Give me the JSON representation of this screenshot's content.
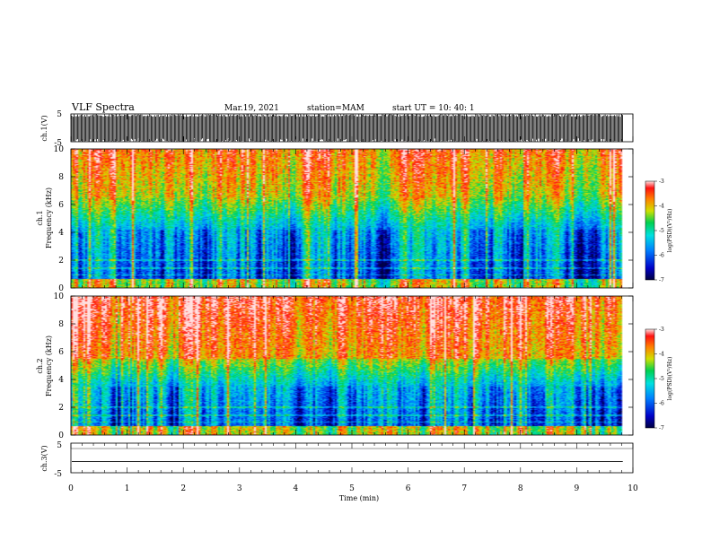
{
  "header": {
    "title": "VLF Spectra",
    "date": "Mar.19, 2021",
    "station": "station=MAM",
    "start": "start  UT  =   10: 40: 1"
  },
  "chart_data": [
    {
      "type": "line",
      "id": "ch1-waveform",
      "ylabel": "ch.1(V)",
      "ylim": [
        -5,
        5
      ],
      "yticks": [
        "5",
        "-5"
      ],
      "xlim": [
        0,
        10
      ],
      "x_end": 9.82,
      "envelope_min": -5,
      "envelope_max": 5
    },
    {
      "type": "heatmap",
      "id": "ch1-spectrogram",
      "ylabel_line1": "ch.1",
      "ylabel_line2": "Frequency  (kHz)",
      "ylim": [
        0,
        10
      ],
      "yticks": [
        "0",
        "2",
        "4",
        "6",
        "8",
        "10"
      ],
      "xlim": [
        0,
        10
      ],
      "x_end": 9.82,
      "colorbar": {
        "label": "log(PSD)(V²/Hz)",
        "range": [
          -7,
          -3
        ],
        "ticks": [
          "-3",
          "-4",
          "-5",
          "-6",
          "-7"
        ]
      },
      "profile": {
        "low_band_khz": [
          0,
          4.2
        ],
        "mid_band_khz": [
          4.2,
          6.5
        ],
        "high_band_khz": [
          6.5,
          10
        ]
      }
    },
    {
      "type": "heatmap",
      "id": "ch2-spectrogram",
      "ylabel_line1": "ch.2",
      "ylabel_line2": "Frequency  (kHz)",
      "ylim": [
        0,
        10
      ],
      "yticks": [
        "0",
        "2",
        "4",
        "6",
        "8",
        "10"
      ],
      "xlim": [
        0,
        10
      ],
      "x_end": 9.82,
      "colorbar": {
        "label": "log(PSD)(V²/Hz)",
        "range": [
          -7,
          -3
        ],
        "ticks": [
          "-3",
          "-4",
          "-5",
          "-6",
          "-7"
        ]
      },
      "profile": {
        "low_band_khz": [
          0,
          3.5
        ],
        "mid_band_khz": [
          3.5,
          5.5
        ],
        "high_band_khz": [
          5.5,
          10
        ]
      }
    },
    {
      "type": "line",
      "id": "ch3-waveform",
      "ylabel": "ch.3(V)",
      "ylim": [
        -5,
        5
      ],
      "yticks": [
        "5",
        "0",
        "-5"
      ],
      "xlim": [
        0,
        10
      ],
      "x_end": 9.82,
      "constant_value": -1.2
    }
  ],
  "xaxis": {
    "label": "Time  (min)",
    "ticks": [
      "0",
      "1",
      "2",
      "3",
      "4",
      "5",
      "6",
      "7",
      "8",
      "9",
      "10"
    ]
  }
}
